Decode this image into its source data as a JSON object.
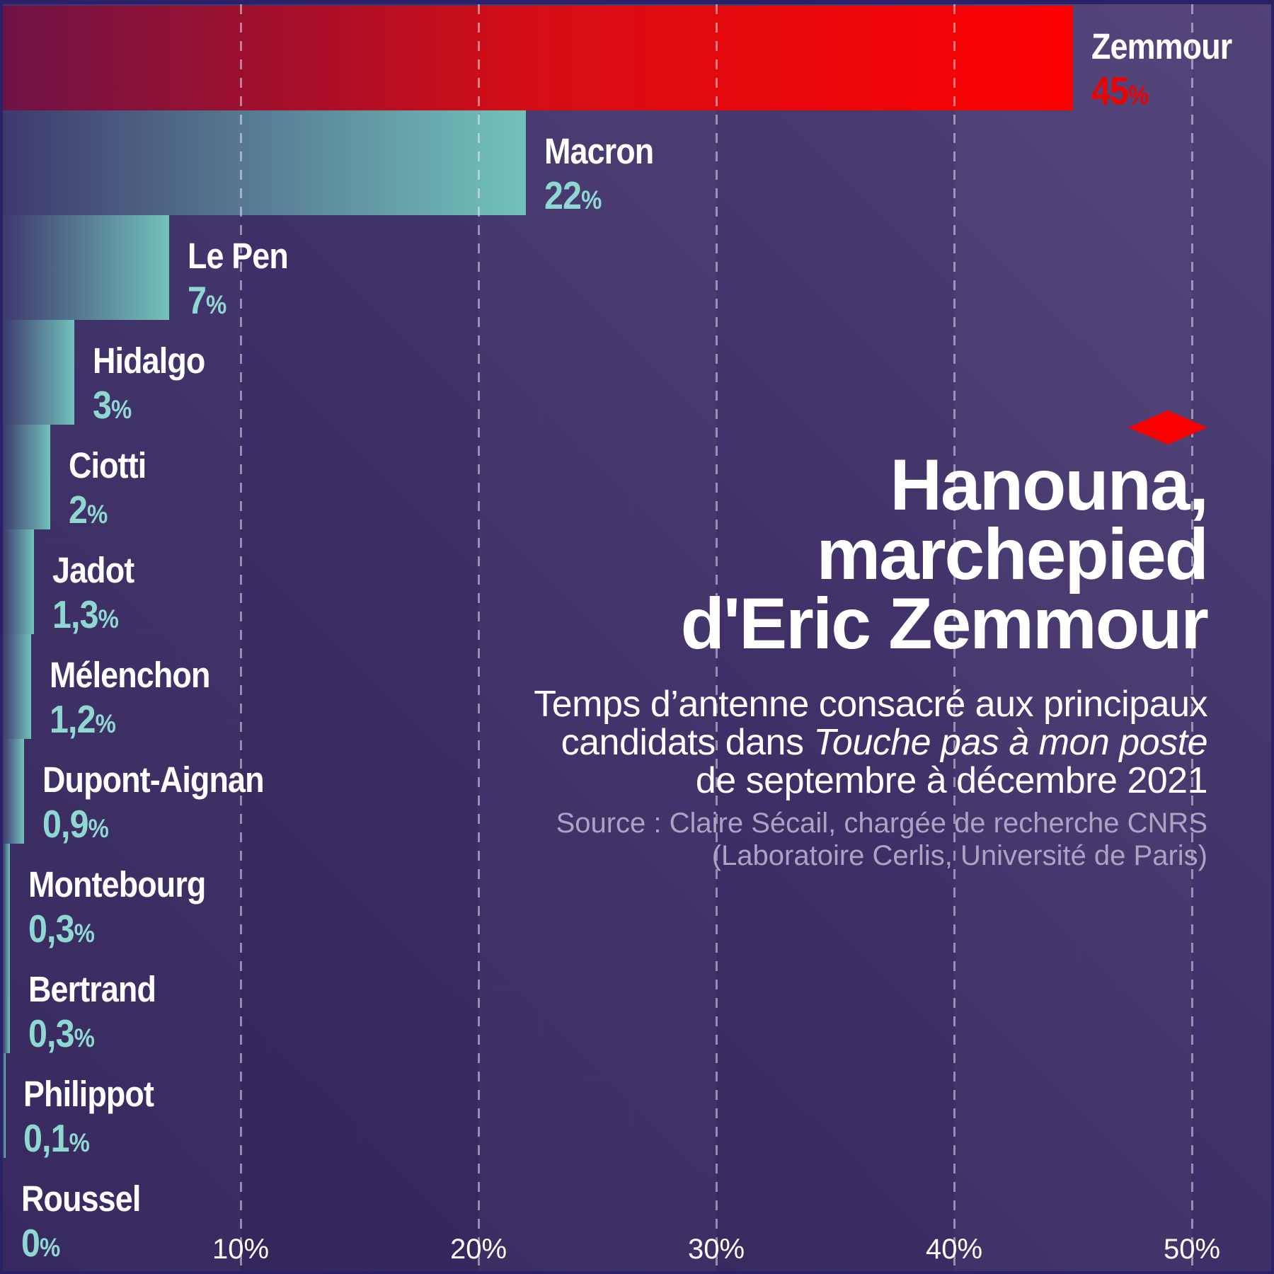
{
  "frame_color": "#2b2168",
  "background": {
    "from": "#33255a",
    "to": "#514278"
  },
  "gridline_color": "rgba(238,236,248,0.5)",
  "decoration": {
    "diamond_color": "#fa0000"
  },
  "title": {
    "lines": [
      "Hanouna,",
      "marchepied",
      "d'Eric Zemmour"
    ]
  },
  "subtitle": {
    "line1": "Temps d’antenne consacré aux principaux",
    "line2_prefix": "candidats dans ",
    "line2_italic": "Touche pas à mon poste",
    "line3": "de septembre à décembre 2021"
  },
  "source": {
    "line1": "Source : Claire Sécail, chargée de recherche CNRS",
    "line2": "(Laboratoire Cerlis, Université de Paris)",
    "color": "#aba2c4"
  },
  "chart_data": {
    "type": "bar",
    "orientation": "horizontal",
    "title": "Hanouna, marchepied d'Eric Zemmour",
    "categories": [
      "Zemmour",
      "Macron",
      "Le Pen",
      "Hidalgo",
      "Ciotti",
      "Jadot",
      "Mélenchon",
      "Dupont-Aignan",
      "Montebourg",
      "Bertrand",
      "Philippot",
      "Roussel"
    ],
    "values": [
      45,
      22,
      7,
      3,
      2,
      1.3,
      1.2,
      0.9,
      0.3,
      0.3,
      0.1,
      0
    ],
    "value_labels": [
      "45%",
      "22%",
      "7%",
      "3%",
      "2%",
      "1,3%",
      "1,2%",
      "0,9%",
      "0,3%",
      "0,3%",
      "0,1%",
      "0%"
    ],
    "xlabel": "",
    "ylabel": "",
    "xlim": [
      0,
      53.5
    ],
    "x_ticks": [
      {
        "value": 10,
        "label": "10%"
      },
      {
        "value": 20,
        "label": "20%"
      },
      {
        "value": 30,
        "label": "30%"
      },
      {
        "value": 40,
        "label": "40%"
      },
      {
        "value": 50,
        "label": "50%"
      }
    ],
    "grid": "vertical-dashed",
    "legend": "none",
    "name_color": "#ffffff",
    "default_colors": {
      "value_color": "#8fd8d2",
      "bar_gradient": [
        "#3e3a6d",
        "#72c2bc"
      ]
    },
    "highlight": {
      "category": "Zemmour",
      "value_color": "#f20000",
      "bar_gradient": [
        "#6e1345",
        "#d50d14",
        "#fb0000"
      ]
    }
  }
}
